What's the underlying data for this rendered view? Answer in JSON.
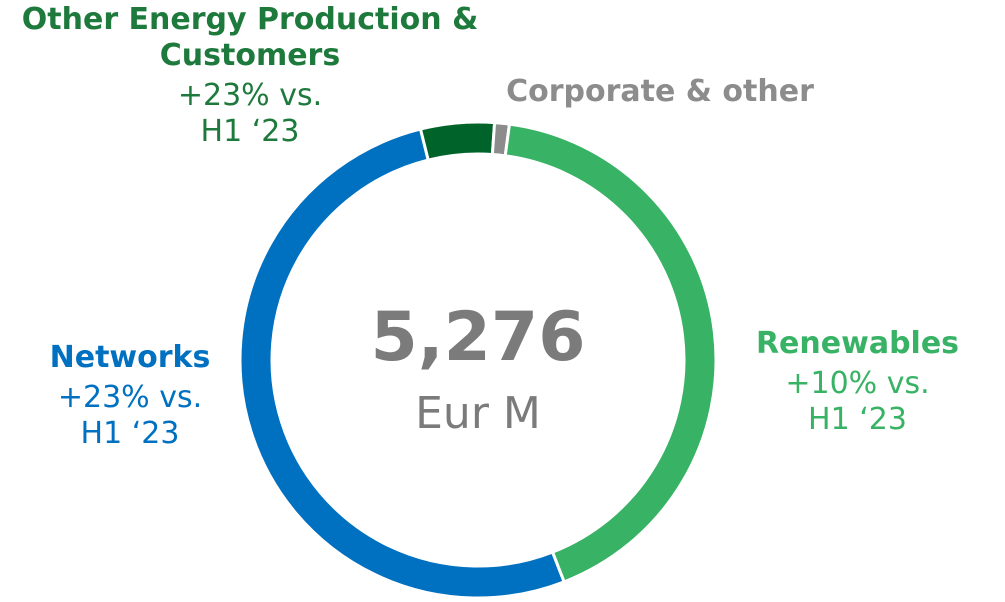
{
  "chart_data": {
    "type": "donut",
    "categories": [
      "Other Energy Production & Customers",
      "Corporate & other",
      "Renewables",
      "Networks"
    ],
    "values": [
      5,
      1,
      42,
      52
    ],
    "colors": [
      "#00632a",
      "#8c8c8c",
      "#38b264",
      "#0070c0"
    ],
    "label_colors": [
      "#1e7a3c",
      "#8c8c8c",
      "#38b264",
      "#0070c0"
    ],
    "changes": [
      "+23% vs. H1 ‘23",
      null,
      "+10% vs. H1 ‘23",
      "+23% vs. H1 ‘23"
    ],
    "total": {
      "value": 5276,
      "label": "5,276"
    },
    "unit": "Eur M"
  }
}
